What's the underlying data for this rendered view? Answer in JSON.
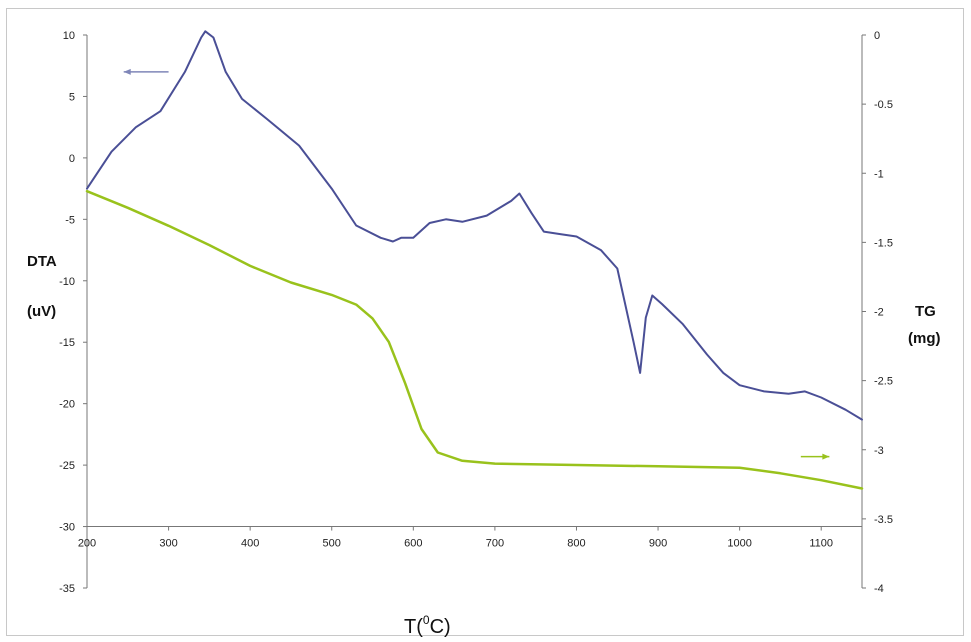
{
  "chart_data": {
    "type": "line",
    "xlabel": "T(°C)",
    "xlabel_main": "T(",
    "xlabel_sup": "0",
    "xlabel_end": "C)",
    "ylabel_left_line1": "DTA",
    "ylabel_left_line2": "(uV)",
    "ylabel_right_line1": "TG",
    "ylabel_right_line2": "(mg)",
    "xlim": [
      200,
      1150
    ],
    "ylim_left": [
      -35,
      10
    ],
    "ylim_right": [
      -4,
      0
    ],
    "x_ticks": [
      "200",
      "300",
      "400",
      "500",
      "600",
      "700",
      "800",
      "900",
      "1000",
      "1100"
    ],
    "y_left_ticks": [
      "10",
      "5",
      "0",
      "-5",
      "-10",
      "-15",
      "-20",
      "-25",
      "-30",
      "-35"
    ],
    "y_right_ticks": [
      "0",
      "-0.5",
      "-1",
      "-1.5",
      "-2",
      "-2.5",
      "-3",
      "-3.5",
      "-4"
    ],
    "x_axis_at_left_value": -30,
    "grid": false,
    "series": [
      {
        "axis": "left",
        "color": "#4a4f96",
        "x": [
          200,
          230,
          260,
          290,
          320,
          340,
          345,
          355,
          370,
          390,
          420,
          460,
          500,
          530,
          560,
          575,
          585,
          600,
          620,
          640,
          660,
          690,
          720,
          730,
          745,
          760,
          780,
          800,
          830,
          850,
          870,
          878,
          885,
          893,
          905,
          930,
          960,
          980,
          1000,
          1030,
          1060,
          1080,
          1100,
          1130,
          1150
        ],
        "values": [
          -2.5,
          0.5,
          2.5,
          3.8,
          7.0,
          9.8,
          10.3,
          9.8,
          7.0,
          4.8,
          3.2,
          1.0,
          -2.5,
          -5.5,
          -6.5,
          -6.8,
          -6.5,
          -6.5,
          -5.3,
          -5.0,
          -5.2,
          -4.7,
          -3.5,
          -2.9,
          -4.5,
          -6.0,
          -6.2,
          -6.4,
          -7.5,
          -9.0,
          -15.0,
          -17.5,
          -13.0,
          -11.2,
          -11.9,
          -13.5,
          -16.0,
          -17.5,
          -18.5,
          -19.0,
          -19.2,
          -19.0,
          -19.5,
          -20.5,
          -21.3
        ]
      },
      {
        "axis": "right",
        "color": "#99c21c",
        "x": [
          200,
          250,
          300,
          350,
          400,
          450,
          500,
          530,
          550,
          570,
          590,
          610,
          630,
          660,
          700,
          800,
          900,
          1000,
          1050,
          1100,
          1150
        ],
        "values": [
          -1.13,
          -1.25,
          -1.38,
          -1.52,
          -1.67,
          -1.79,
          -1.88,
          -1.95,
          -2.05,
          -2.22,
          -2.52,
          -2.85,
          -3.02,
          -3.08,
          -3.1,
          -3.11,
          -3.12,
          -3.13,
          -3.17,
          -3.22,
          -3.28
        ]
      }
    ],
    "arrows": [
      {
        "axis": "left",
        "direction": "left",
        "x1": 300,
        "x2": 245,
        "y": 7.0,
        "color": "#7f86b8"
      },
      {
        "axis": "right",
        "direction": "right",
        "x1": 1075,
        "x2": 1110,
        "y": -3.05,
        "color": "#99c21c"
      }
    ]
  }
}
